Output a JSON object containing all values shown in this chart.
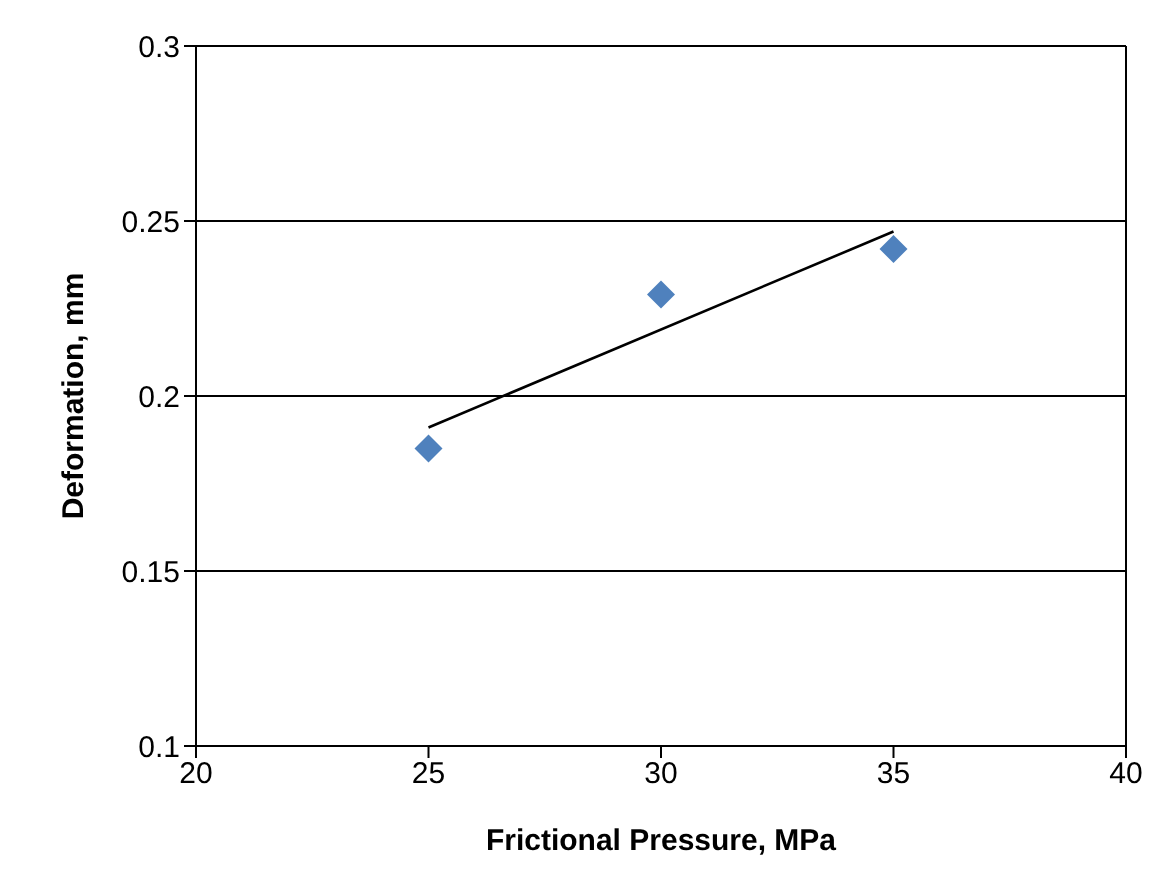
{
  "chart_data": {
    "type": "scatter",
    "xlabel": "Frictional Pressure, MPa",
    "ylabel": "Deformation, mm",
    "xlim": [
      20,
      40
    ],
    "xticks": [
      20,
      25,
      30,
      35,
      40
    ],
    "ylim": [
      0.1,
      0.3
    ],
    "yticks": [
      0.1,
      0.15,
      0.2,
      0.25,
      0.3
    ],
    "grid": "y",
    "series": [
      {
        "color": "#4f81bd",
        "marker": "diamond",
        "x": [
          25,
          30,
          35
        ],
        "values": [
          0.185,
          0.229,
          0.242
        ]
      },
      {
        "type": "line",
        "color": "#000000",
        "marker": "none",
        "x": [
          25,
          35
        ],
        "values": [
          0.191,
          0.247
        ]
      }
    ]
  }
}
